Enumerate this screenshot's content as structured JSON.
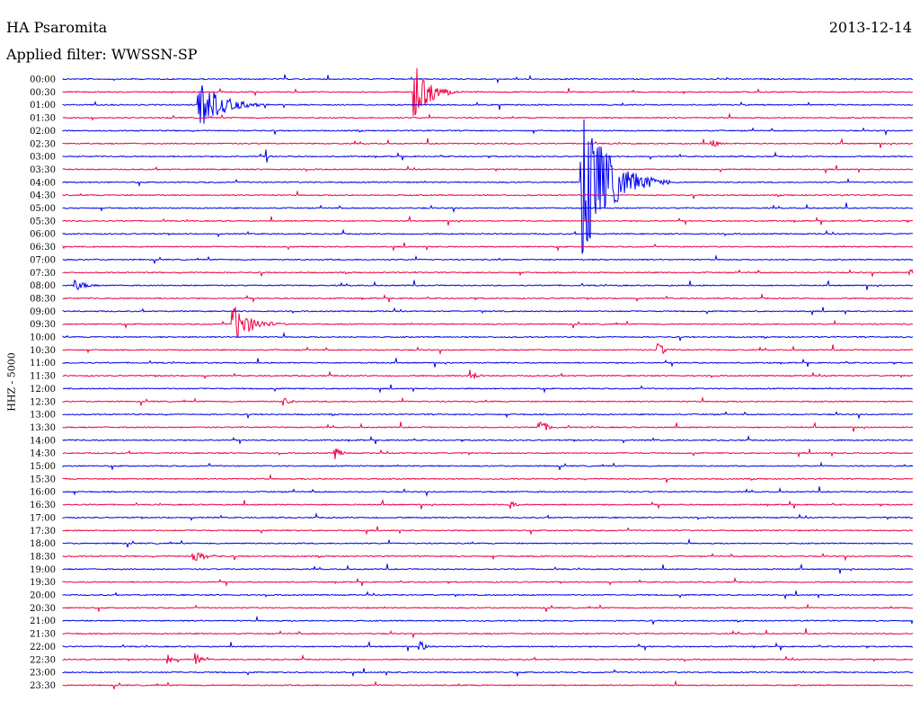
{
  "header": {
    "station": "HA Psaromita",
    "date": "2013-12-14",
    "filter": "Applied filter: WWSSN-SP"
  },
  "chart_data": {
    "type": "line",
    "chart_kind": "helicorder",
    "title": "HA Psaromita",
    "subtitle": "Applied filter: WWSSN-SP",
    "ylabel": "HHZ - 5000",
    "time_span_minutes": 30,
    "colors": [
      "#0000ee",
      "#ee0044"
    ],
    "traces": [
      "00:00",
      "00:30",
      "01:00",
      "01:30",
      "02:00",
      "02:30",
      "03:00",
      "03:30",
      "04:00",
      "04:30",
      "05:00",
      "05:30",
      "06:00",
      "06:30",
      "07:00",
      "07:30",
      "08:00",
      "08:30",
      "09:00",
      "09:30",
      "10:00",
      "10:30",
      "11:00",
      "11:30",
      "12:00",
      "12:30",
      "13:00",
      "13:30",
      "14:00",
      "14:30",
      "15:00",
      "15:30",
      "16:00",
      "16:30",
      "17:00",
      "17:30",
      "18:00",
      "18:30",
      "19:00",
      "19:30",
      "20:00",
      "20:30",
      "21:00",
      "21:30",
      "22:00",
      "22:30",
      "23:00",
      "23:30"
    ],
    "events": [
      {
        "trace": "00:30",
        "minute": 12.4,
        "amp": 32,
        "dur": 1.6
      },
      {
        "trace": "01:00",
        "minute": 4.8,
        "amp": 30,
        "dur": 2.2
      },
      {
        "trace": "04:00",
        "minute": 18.3,
        "amp": 95,
        "dur": 2.6
      },
      {
        "trace": "09:30",
        "minute": 6.0,
        "amp": 22,
        "dur": 1.8
      },
      {
        "trace": "07:30",
        "minute": 29.9,
        "amp": 7,
        "dur": 0.4
      },
      {
        "trace": "08:00",
        "minute": 0.4,
        "amp": 7,
        "dur": 1.2
      },
      {
        "trace": "02:30",
        "minute": 22.9,
        "amp": 6,
        "dur": 0.6
      },
      {
        "trace": "10:30",
        "minute": 21.0,
        "amp": 10,
        "dur": 0.6
      },
      {
        "trace": "13:30",
        "minute": 16.8,
        "amp": 10,
        "dur": 0.8
      },
      {
        "trace": "14:30",
        "minute": 9.6,
        "amp": 8,
        "dur": 0.6
      },
      {
        "trace": "22:00",
        "minute": 12.6,
        "amp": 8,
        "dur": 0.6
      },
      {
        "trace": "22:30",
        "minute": 3.7,
        "amp": 8,
        "dur": 0.5
      },
      {
        "trace": "22:30",
        "minute": 4.7,
        "amp": 8,
        "dur": 0.5
      },
      {
        "trace": "18:30",
        "minute": 4.6,
        "amp": 6,
        "dur": 1.6
      },
      {
        "trace": "16:30",
        "minute": 15.8,
        "amp": 6,
        "dur": 0.5
      },
      {
        "trace": "11:30",
        "minute": 14.4,
        "amp": 7,
        "dur": 0.6
      },
      {
        "trace": "12:30",
        "minute": 7.8,
        "amp": 6,
        "dur": 0.6
      },
      {
        "trace": "03:00",
        "minute": 7.2,
        "amp": 9,
        "dur": 0.2
      }
    ]
  }
}
